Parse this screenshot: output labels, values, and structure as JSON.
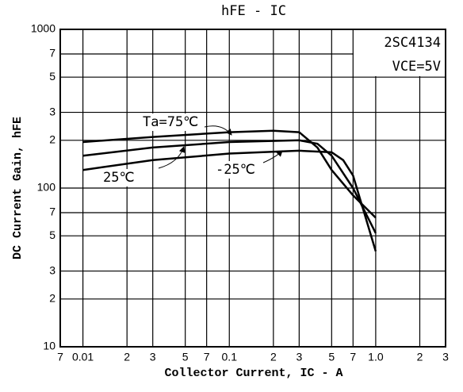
{
  "chart_data": {
    "type": "line",
    "title": "hFE - IC",
    "x_label": "Collector Current, IC - A",
    "y_label": "DC Current Gain, hFE",
    "log_x": true,
    "log_y": true,
    "grid": true,
    "annotations": [
      "2SC4134",
      "VCE=5V"
    ],
    "xlim": [
      0.007,
      3
    ],
    "ylim": [
      10,
      1000
    ],
    "xticks": [
      {
        "value": 0.007,
        "label": "7"
      },
      0.01,
      {
        "value": 0.02,
        "label": "2"
      },
      {
        "value": 0.03,
        "label": "3"
      },
      {
        "value": 0.05,
        "label": "5"
      },
      {
        "value": 0.07,
        "label": "7"
      },
      0.1,
      {
        "value": 0.2,
        "label": "2"
      },
      {
        "value": 0.3,
        "label": "3"
      },
      {
        "value": 0.5,
        "label": "5"
      },
      {
        "value": 0.7,
        "label": "7"
      },
      {
        "value": 1,
        "label": "1.0"
      },
      2,
      3
    ],
    "yticks": [
      10,
      {
        "value": 20,
        "label": "2"
      },
      {
        "value": 30,
        "label": "3"
      },
      {
        "value": 50,
        "label": "5"
      },
      {
        "value": 70,
        "label": "7"
      },
      100,
      {
        "value": 200,
        "label": "2"
      },
      {
        "value": 300,
        "label": "3"
      },
      {
        "value": 500,
        "label": "5"
      },
      {
        "value": 700,
        "label": "7"
      },
      1000
    ],
    "series": [
      {
        "name": "Ta=75℃",
        "color": "#000000",
        "x": [
          0.01,
          0.03,
          0.1,
          0.2,
          0.3,
          0.4,
          0.5,
          0.7,
          1.0
        ],
        "values": [
          195,
          210,
          225,
          230,
          225,
          180,
          130,
          90,
          65
        ]
      },
      {
        "name": "25℃",
        "color": "#000000",
        "x": [
          0.01,
          0.03,
          0.1,
          0.3,
          0.4,
          0.5,
          0.7,
          1.0
        ],
        "values": [
          160,
          180,
          195,
          200,
          190,
          160,
          100,
          52
        ]
      },
      {
        "name": "-25℃",
        "color": "#000000",
        "x": [
          0.01,
          0.03,
          0.1,
          0.3,
          0.5,
          0.6,
          0.7,
          1.0
        ],
        "values": [
          130,
          150,
          165,
          172,
          168,
          150,
          120,
          40
        ]
      }
    ]
  }
}
